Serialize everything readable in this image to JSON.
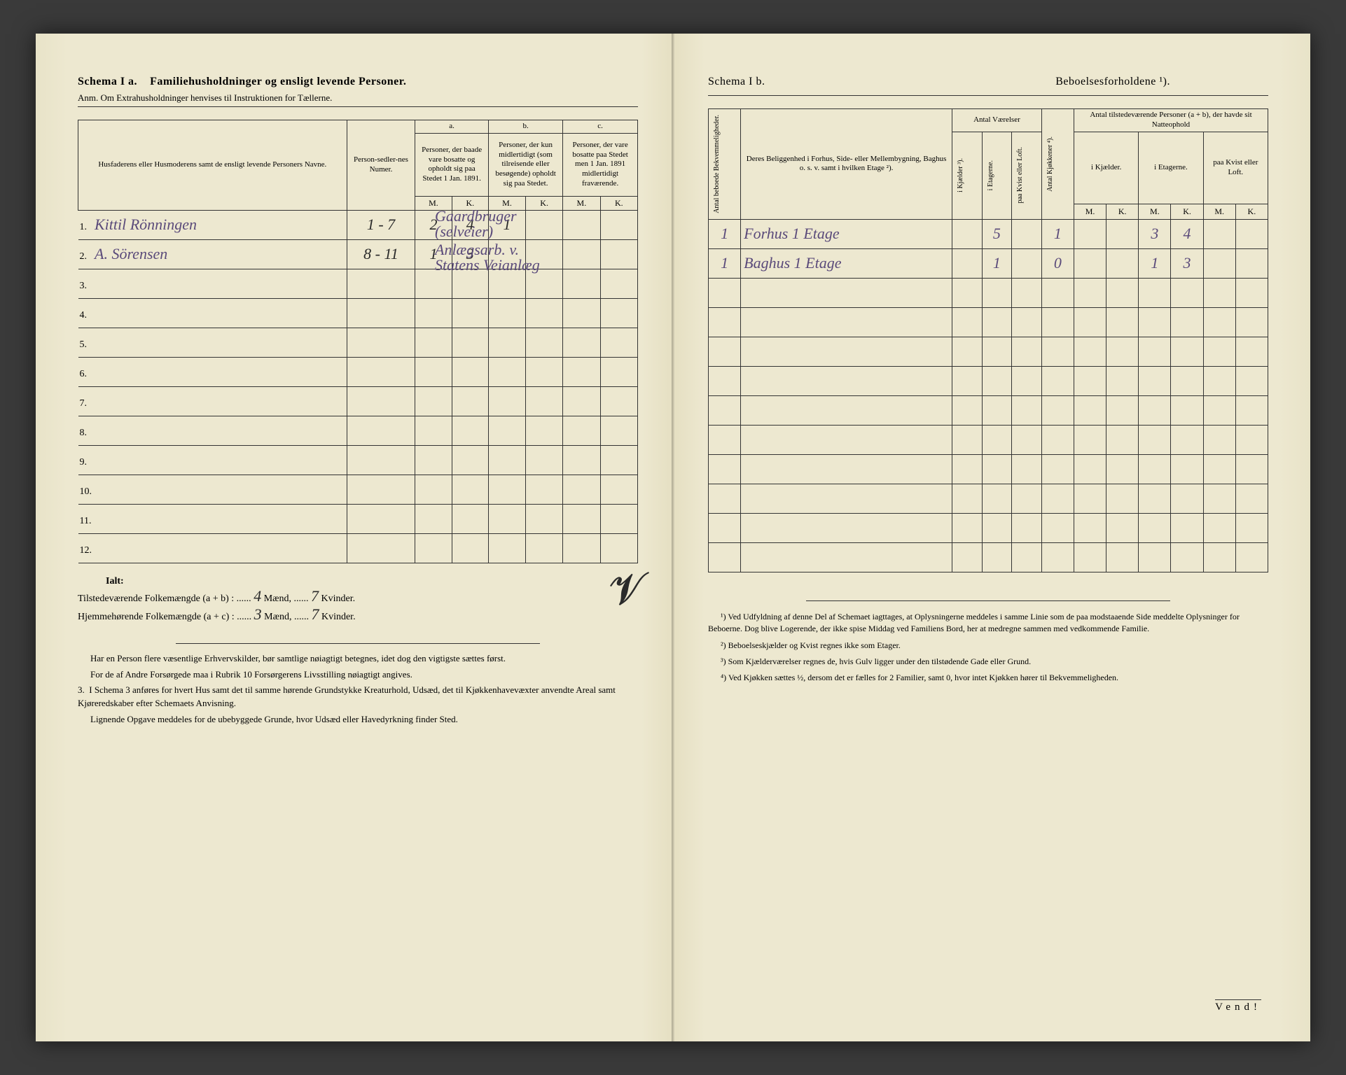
{
  "left": {
    "title_a": "Schema I a.",
    "title_b": "Familiehusholdninger og ensligt levende Personer.",
    "anm": "Anm. Om Extrahusholdninger henvises til Instruktionen for Tællerne.",
    "headers": {
      "col1": "Husfaderens eller Husmoderens samt de ensligt levende Personers Navne.",
      "col2": "Person-sedler-nes Numer.",
      "group_a": "a.",
      "group_b": "b.",
      "group_c": "c.",
      "a_desc": "Personer, der baade vare bosatte og opholdt sig paa Stedet 1 Jan. 1891.",
      "b_desc": "Personer, der kun midlertidigt (som tilreisende eller besøgende) opholdt sig paa Stedet.",
      "c_desc": "Personer, der vare bosatte paa Stedet men 1 Jan. 1891 midlertidigt fraværende.",
      "M": "M.",
      "K": "K."
    },
    "rows": [
      {
        "n": "1.",
        "name": "Kittil Rönningen",
        "num": "1 - 7",
        "aM": "2",
        "aK": "4",
        "bM": "1",
        "bK": "",
        "cM": "",
        "cK": "",
        "note": "Gaardbruger (selveier)"
      },
      {
        "n": "2.",
        "name": "A. Sörensen",
        "num": "8 - 11",
        "aM": "1",
        "aK": "3",
        "bM": "",
        "bK": "",
        "cM": "",
        "cK": "",
        "note": "Anlægsarb. v. Statens Veianlæg"
      },
      {
        "n": "3.",
        "name": "",
        "num": "",
        "aM": "",
        "aK": "",
        "bM": "",
        "bK": "",
        "cM": "",
        "cK": "",
        "note": ""
      },
      {
        "n": "4.",
        "name": "",
        "num": "",
        "aM": "",
        "aK": "",
        "bM": "",
        "bK": "",
        "cM": "",
        "cK": "",
        "note": ""
      },
      {
        "n": "5.",
        "name": "",
        "num": "",
        "aM": "",
        "aK": "",
        "bM": "",
        "bK": "",
        "cM": "",
        "cK": "",
        "note": ""
      },
      {
        "n": "6.",
        "name": "",
        "num": "",
        "aM": "",
        "aK": "",
        "bM": "",
        "bK": "",
        "cM": "",
        "cK": "",
        "note": ""
      },
      {
        "n": "7.",
        "name": "",
        "num": "",
        "aM": "",
        "aK": "",
        "bM": "",
        "bK": "",
        "cM": "",
        "cK": "",
        "note": ""
      },
      {
        "n": "8.",
        "name": "",
        "num": "",
        "aM": "",
        "aK": "",
        "bM": "",
        "bK": "",
        "cM": "",
        "cK": "",
        "note": ""
      },
      {
        "n": "9.",
        "name": "",
        "num": "",
        "aM": "",
        "aK": "",
        "bM": "",
        "bK": "",
        "cM": "",
        "cK": "",
        "note": ""
      },
      {
        "n": "10.",
        "name": "",
        "num": "",
        "aM": "",
        "aK": "",
        "bM": "",
        "bK": "",
        "cM": "",
        "cK": "",
        "note": ""
      },
      {
        "n": "11.",
        "name": "",
        "num": "",
        "aM": "",
        "aK": "",
        "bM": "",
        "bK": "",
        "cM": "",
        "cK": "",
        "note": ""
      },
      {
        "n": "12.",
        "name": "",
        "num": "",
        "aM": "",
        "aK": "",
        "bM": "",
        "bK": "",
        "cM": "",
        "cK": "",
        "note": ""
      }
    ],
    "ialt": "Ialt:",
    "tot1_label": "Tilstedeværende Folkemængde (a + b) : ......",
    "tot1_m": "4",
    "tot1_m_unit": "Mænd, ......",
    "tot1_k": "7",
    "tot1_k_unit": "Kvinder.",
    "tot2_label": "Hjemmehørende Folkemængde (a + c) : ......",
    "tot2_m": "3",
    "tot2_k": "7",
    "notes_p1": "Har en Person flere væsentlige Erhvervskilder, bør samtlige nøiagtigt betegnes, idet dog den vigtigste sættes først.",
    "notes_p2": "For de af Andre Forsørgede maa i Rubrik 10 Forsørgerens Livsstilling nøiagtigt angives.",
    "notes_p3_lead": "3.",
    "notes_p3": "I Schema 3 anføres for hvert Hus samt det til samme hørende Grundstykke Kreaturhold, Udsæd, det til Kjøkkenhavevæxter anvendte Areal samt Kjøreredskaber efter Schemaets Anvisning.",
    "notes_p4": "Lignende Opgave meddeles for de ubebyggede Grunde, hvor Udsæd eller Havedyrkning finder Sted.",
    "rubrik_hw": "10"
  },
  "right": {
    "title_a": "Schema I b.",
    "title_b": "Beboelsesforholdene ¹).",
    "headers": {
      "v1": "Antal beboede Bekvemmeligheder.",
      "col1": "Deres Beliggenhed i Forhus, Side- eller Mellembygning, Baghus o. s. v. samt i hvilken Etage ²).",
      "group_vaer": "Antal Værelser",
      "v2": "i Kjælder ³).",
      "v3": "i Etagerne.",
      "v4": "paa Kvist eller Loft.",
      "v5": "Antal Kjøkkener ⁴).",
      "group_pers": "Antal tilstedeværende Personer (a + b), der havde sit Natteophold",
      "sub1": "i Kjælder.",
      "sub2": "i Etagerne.",
      "sub3": "paa Kvist eller Loft.",
      "M": "M.",
      "K": "K."
    },
    "rows": [
      {
        "bekv": "1",
        "loc": "Forhus 1 Etage",
        "kj": "",
        "et": "5",
        "kv": "",
        "kjok": "1",
        "km": "",
        "kk": "",
        "em": "3",
        "ek": "4",
        "lm": "",
        "lk": ""
      },
      {
        "bekv": "1",
        "loc": "Baghus 1 Etage",
        "kj": "",
        "et": "1",
        "kv": "",
        "kjok": "0",
        "km": "",
        "kk": "",
        "em": "1",
        "ek": "3",
        "lm": "",
        "lk": ""
      },
      {
        "bekv": "",
        "loc": "",
        "kj": "",
        "et": "",
        "kv": "",
        "kjok": "",
        "km": "",
        "kk": "",
        "em": "",
        "ek": "",
        "lm": "",
        "lk": ""
      },
      {
        "bekv": "",
        "loc": "",
        "kj": "",
        "et": "",
        "kv": "",
        "kjok": "",
        "km": "",
        "kk": "",
        "em": "",
        "ek": "",
        "lm": "",
        "lk": ""
      },
      {
        "bekv": "",
        "loc": "",
        "kj": "",
        "et": "",
        "kv": "",
        "kjok": "",
        "km": "",
        "kk": "",
        "em": "",
        "ek": "",
        "lm": "",
        "lk": ""
      },
      {
        "bekv": "",
        "loc": "",
        "kj": "",
        "et": "",
        "kv": "",
        "kjok": "",
        "km": "",
        "kk": "",
        "em": "",
        "ek": "",
        "lm": "",
        "lk": ""
      },
      {
        "bekv": "",
        "loc": "",
        "kj": "",
        "et": "",
        "kv": "",
        "kjok": "",
        "km": "",
        "kk": "",
        "em": "",
        "ek": "",
        "lm": "",
        "lk": ""
      },
      {
        "bekv": "",
        "loc": "",
        "kj": "",
        "et": "",
        "kv": "",
        "kjok": "",
        "km": "",
        "kk": "",
        "em": "",
        "ek": "",
        "lm": "",
        "lk": ""
      },
      {
        "bekv": "",
        "loc": "",
        "kj": "",
        "et": "",
        "kv": "",
        "kjok": "",
        "km": "",
        "kk": "",
        "em": "",
        "ek": "",
        "lm": "",
        "lk": ""
      },
      {
        "bekv": "",
        "loc": "",
        "kj": "",
        "et": "",
        "kv": "",
        "kjok": "",
        "km": "",
        "kk": "",
        "em": "",
        "ek": "",
        "lm": "",
        "lk": ""
      },
      {
        "bekv": "",
        "loc": "",
        "kj": "",
        "et": "",
        "kv": "",
        "kjok": "",
        "km": "",
        "kk": "",
        "em": "",
        "ek": "",
        "lm": "",
        "lk": ""
      },
      {
        "bekv": "",
        "loc": "",
        "kj": "",
        "et": "",
        "kv": "",
        "kjok": "",
        "km": "",
        "kk": "",
        "em": "",
        "ek": "",
        "lm": "",
        "lk": ""
      }
    ],
    "fn1": "¹) Ved Udfyldning af denne Del af Schemaet iagttages, at Oplysningerne meddeles i samme Linie som de paa modstaaende Side meddelte Oplysninger for Beboerne. Dog blive Logerende, der ikke spise Middag ved Familiens Bord, her at medregne sammen med vedkommende Familie.",
    "fn2": "²) Beboelseskjælder og Kvist regnes ikke som Etager.",
    "fn3": "³) Som Kjælderværelser regnes de, hvis Gulv ligger under den tilstødende Gade eller Grund.",
    "fn4": "⁴) Ved Kjøkken sættes ½, dersom det er fælles for 2 Familier, samt 0, hvor intet Kjøkken hører til Bekvemmeligheden.",
    "vend": "Vend!"
  },
  "colors": {
    "paper": "#ede8d0",
    "ink": "#2a2a2a",
    "handwriting": "#5a4a7a",
    "background": "#3a3a3a"
  }
}
